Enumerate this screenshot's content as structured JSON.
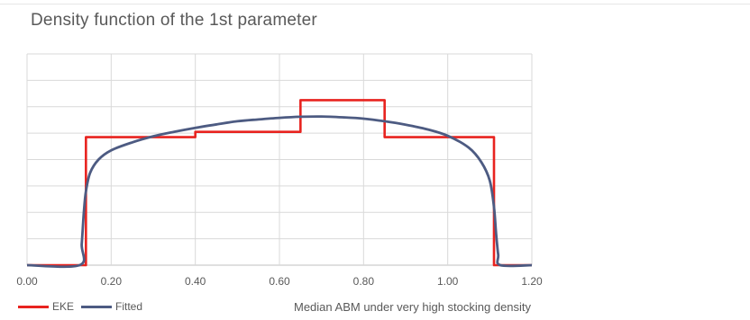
{
  "title": "Density function of the 1st parameter",
  "chart_data": {
    "type": "line",
    "title": "Density function of the 1st parameter",
    "xlabel": "Median ABM under very high stocking density",
    "ylabel": "",
    "xlim": [
      0,
      1.2
    ],
    "ylim": [
      0,
      8
    ],
    "x_ticks": [
      "0.00",
      "0.20",
      "0.40",
      "0.60",
      "0.80",
      "1.00",
      "1.20"
    ],
    "y_gridlines": 8,
    "y_tick_labels_shown": false,
    "grid": true,
    "legend_position": "bottom-left",
    "series": [
      {
        "name": "EKE",
        "color": "#e8231f",
        "style": "step",
        "points": [
          [
            0.0,
            0
          ],
          [
            0.14,
            0
          ],
          [
            0.14,
            4.85
          ],
          [
            0.4,
            4.85
          ],
          [
            0.4,
            5.05
          ],
          [
            0.65,
            5.05
          ],
          [
            0.65,
            6.25
          ],
          [
            0.85,
            6.25
          ],
          [
            0.85,
            4.85
          ],
          [
            1.11,
            4.85
          ],
          [
            1.11,
            0
          ],
          [
            1.2,
            0
          ]
        ]
      },
      {
        "name": "Fitted",
        "color": "#4d5b82",
        "style": "smooth",
        "points": [
          [
            0.0,
            0
          ],
          [
            0.125,
            0
          ],
          [
            0.13,
            0.8
          ],
          [
            0.135,
            2.0
          ],
          [
            0.14,
            2.8
          ],
          [
            0.15,
            3.5
          ],
          [
            0.17,
            4.0
          ],
          [
            0.2,
            4.35
          ],
          [
            0.25,
            4.65
          ],
          [
            0.3,
            4.88
          ],
          [
            0.35,
            5.05
          ],
          [
            0.4,
            5.2
          ],
          [
            0.45,
            5.33
          ],
          [
            0.5,
            5.45
          ],
          [
            0.55,
            5.52
          ],
          [
            0.6,
            5.58
          ],
          [
            0.65,
            5.62
          ],
          [
            0.7,
            5.63
          ],
          [
            0.75,
            5.6
          ],
          [
            0.8,
            5.55
          ],
          [
            0.85,
            5.45
          ],
          [
            0.9,
            5.32
          ],
          [
            0.95,
            5.15
          ],
          [
            1.0,
            4.9
          ],
          [
            1.05,
            4.45
          ],
          [
            1.08,
            3.9
          ],
          [
            1.1,
            3.2
          ],
          [
            1.11,
            2.2
          ],
          [
            1.115,
            1.2
          ],
          [
            1.12,
            0.4
          ],
          [
            1.125,
            0
          ],
          [
            1.2,
            0
          ]
        ]
      }
    ]
  }
}
